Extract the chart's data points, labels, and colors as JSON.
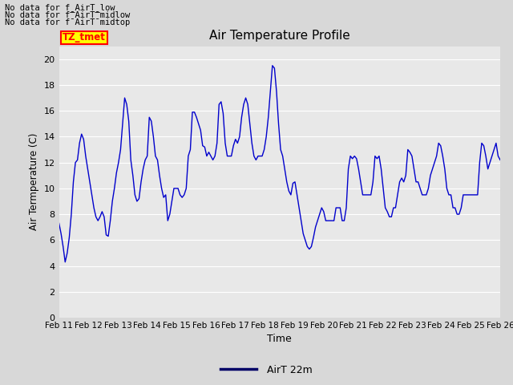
{
  "title": "Air Temperature Profile",
  "xlabel": "Time",
  "ylabel": "Air Termperature (C)",
  "ylim": [
    0,
    21
  ],
  "yticks": [
    0,
    2,
    4,
    6,
    8,
    10,
    12,
    14,
    16,
    18,
    20
  ],
  "x_labels": [
    "Feb 11",
    "Feb 12",
    "Feb 13",
    "Feb 14",
    "Feb 15",
    "Feb 16",
    "Feb 17",
    "Feb 18",
    "Feb 19",
    "Feb 20",
    "Feb 21",
    "Feb 22",
    "Feb 23",
    "Feb 24",
    "Feb 25",
    "Feb 26"
  ],
  "line_color": "#0000cc",
  "line_label": "AirT 22m",
  "fig_bg_color": "#d8d8d8",
  "plot_bg_color": "#e8e8e8",
  "no_data_texts": [
    "No data for f_AirT_low",
    "No data for f¯AirT¯midlow",
    "No data for f¯AirT¯midtop"
  ],
  "tz_label": "TZ_tmet",
  "legend_line_color": "#000066",
  "y_values": [
    7.3,
    6.5,
    5.5,
    4.3,
    5.0,
    6.2,
    8.0,
    10.5,
    12.0,
    12.2,
    13.5,
    14.2,
    13.8,
    12.5,
    11.5,
    10.5,
    9.5,
    8.5,
    7.8,
    7.5,
    7.8,
    8.2,
    7.8,
    6.4,
    6.3,
    7.5,
    9.0,
    10.0,
    11.2,
    12.0,
    13.0,
    15.0,
    17.0,
    16.5,
    15.2,
    12.2,
    11.0,
    9.5,
    9.0,
    9.2,
    10.5,
    11.5,
    12.2,
    12.5,
    15.5,
    15.2,
    14.0,
    12.5,
    12.2,
    11.0,
    10.0,
    9.3,
    9.5,
    7.5,
    8.0,
    9.0,
    10.0,
    10.0,
    10.0,
    9.5,
    9.3,
    9.5,
    10.0,
    12.5,
    13.0,
    15.9,
    15.9,
    15.5,
    15.0,
    14.5,
    13.3,
    13.2,
    12.5,
    12.8,
    12.5,
    12.2,
    12.5,
    13.5,
    16.5,
    16.7,
    15.8,
    13.5,
    12.5,
    12.5,
    12.5,
    13.3,
    13.8,
    13.5,
    14.0,
    15.5,
    16.5,
    17.0,
    16.5,
    15.0,
    13.5,
    12.5,
    12.2,
    12.5,
    12.5,
    12.5,
    13.0,
    14.0,
    15.5,
    17.5,
    19.5,
    19.3,
    17.5,
    15.0,
    13.0,
    12.5,
    11.5,
    10.5,
    9.8,
    9.5,
    10.4,
    10.5,
    9.5,
    8.5,
    7.5,
    6.5,
    6.0,
    5.5,
    5.3,
    5.5,
    6.2,
    7.0,
    7.5,
    8.0,
    8.5,
    8.2,
    7.5,
    7.5,
    7.5,
    7.5,
    7.5,
    8.5,
    8.5,
    8.5,
    7.5,
    7.5,
    8.5,
    11.5,
    12.5,
    12.3,
    12.5,
    12.3,
    11.5,
    10.5,
    9.5,
    9.5,
    9.5,
    9.5,
    9.5,
    10.5,
    12.5,
    12.3,
    12.5,
    11.5,
    10.0,
    8.5,
    8.2,
    7.8,
    7.8,
    8.5,
    8.5,
    9.5,
    10.5,
    10.8,
    10.5,
    11.0,
    13.0,
    12.8,
    12.5,
    11.5,
    10.5,
    10.5,
    10.0,
    9.5,
    9.5,
    9.5,
    10.0,
    11.0,
    11.5,
    12.0,
    12.5,
    13.5,
    13.3,
    12.5,
    11.5,
    10.0,
    9.5,
    9.5,
    8.5,
    8.5,
    8.0,
    8.0,
    8.5,
    9.5,
    9.5,
    9.5,
    9.5,
    9.5,
    9.5,
    9.5,
    9.5,
    12.0,
    13.5,
    13.3,
    12.5,
    11.5,
    12.0,
    12.5,
    13.0,
    13.5,
    12.5,
    12.2
  ]
}
